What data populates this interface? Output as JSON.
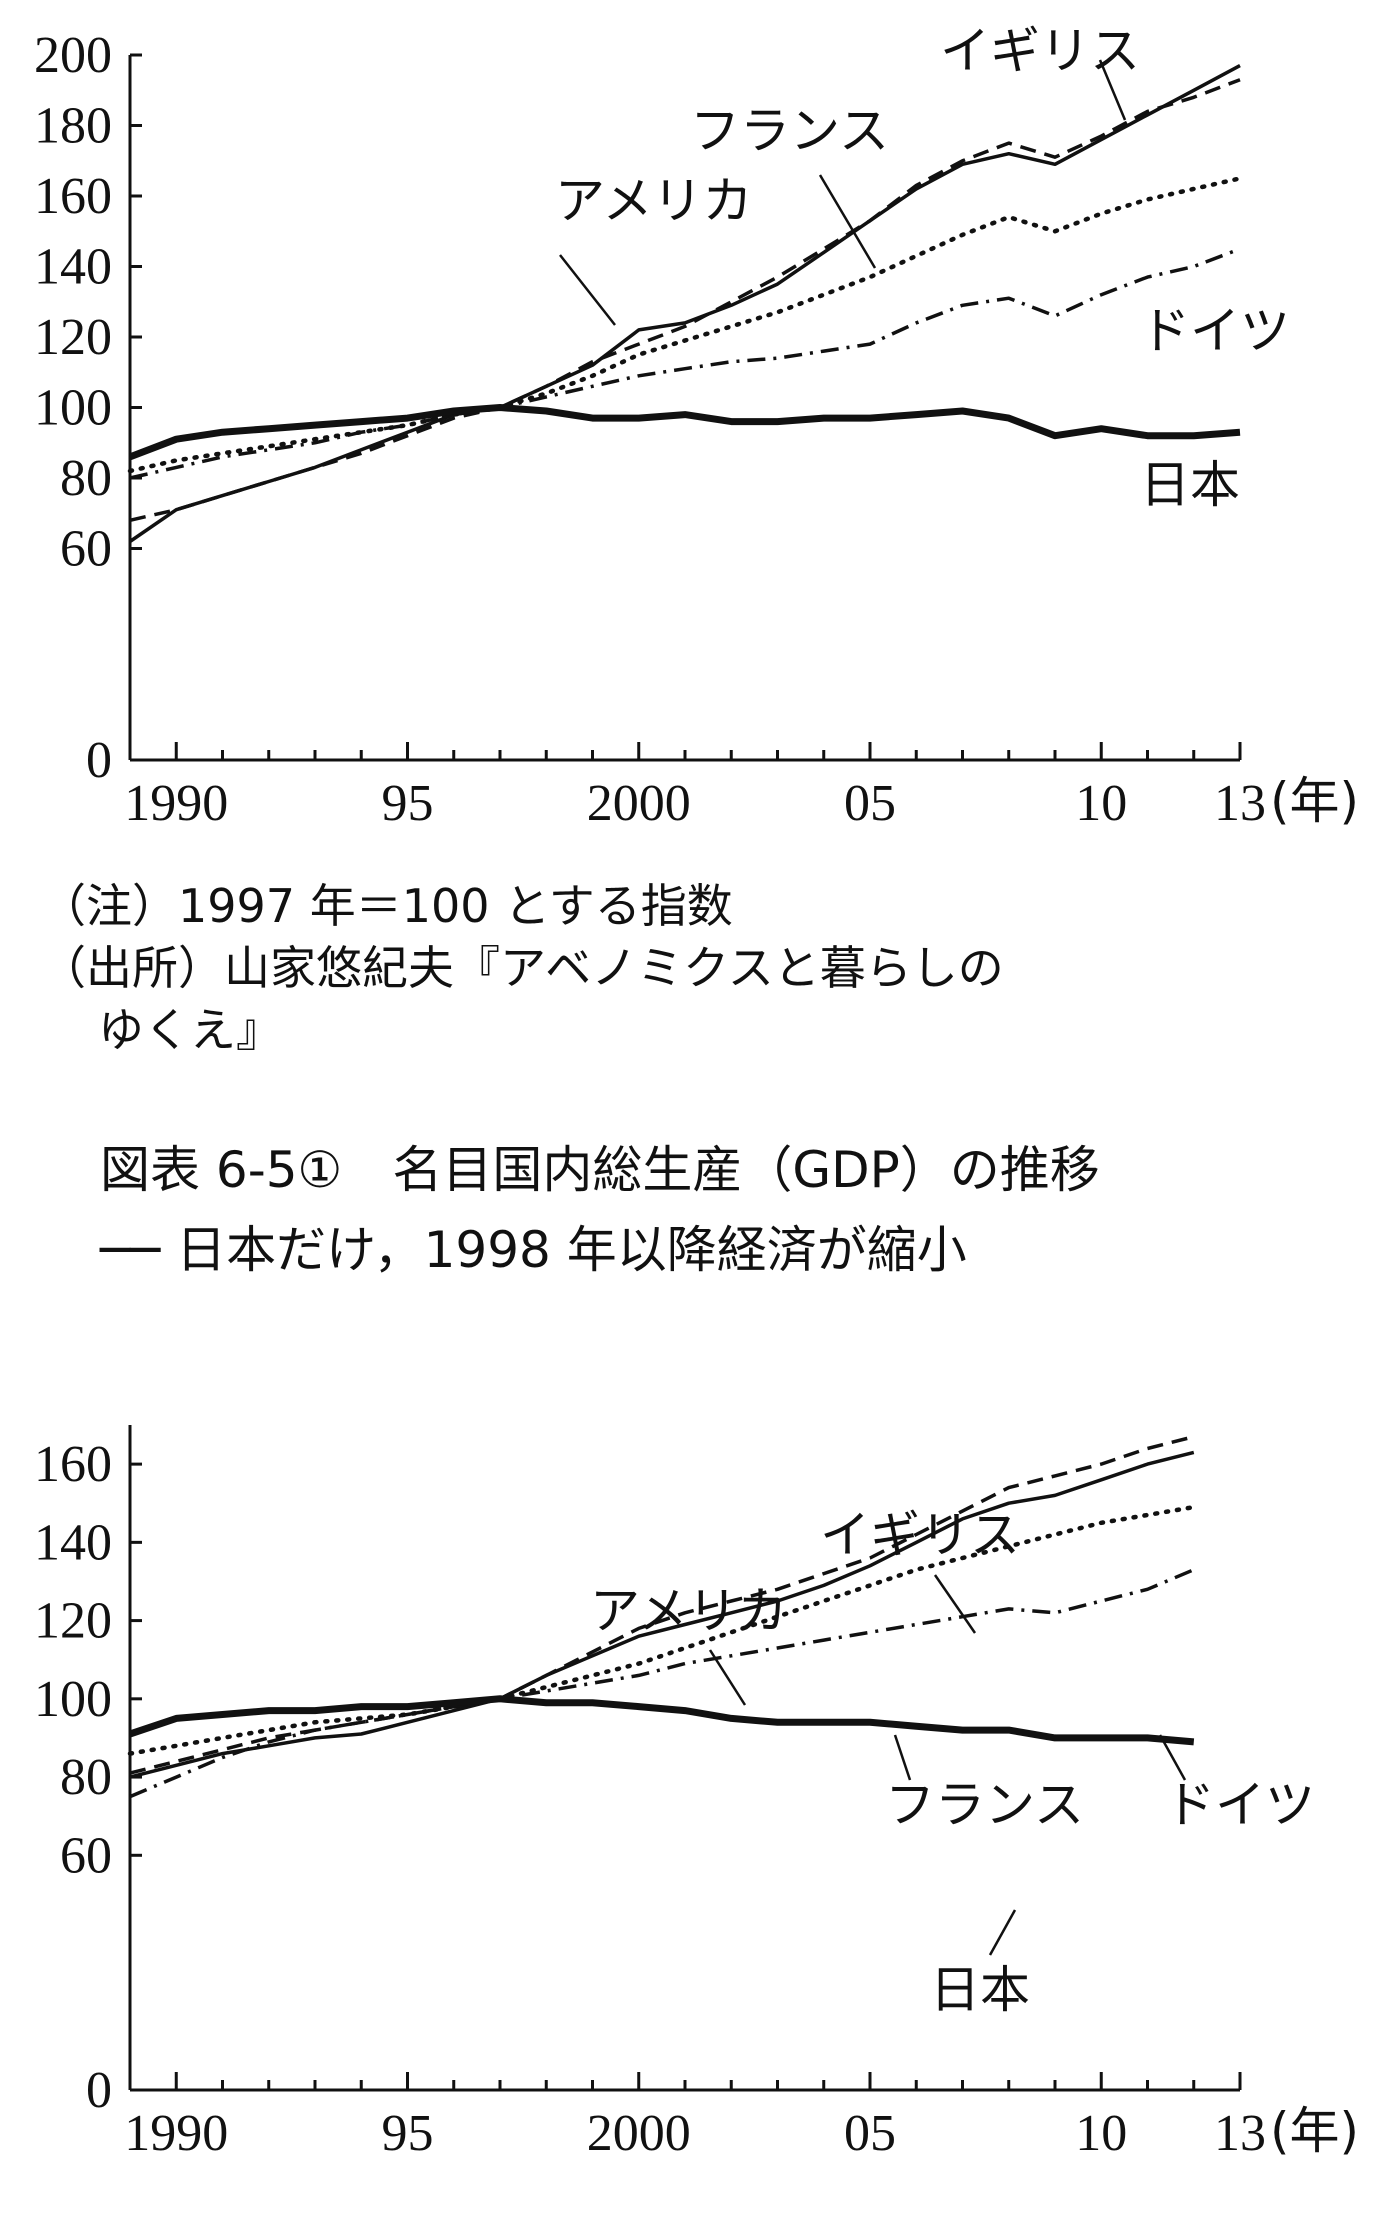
{
  "chart_data": [
    {
      "type": "line",
      "ylim": [
        0,
        200
      ],
      "y_ticks": [
        "0",
        "60",
        "80",
        "100",
        "120",
        "140",
        "160",
        "180",
        "200"
      ],
      "x_ticks": [
        {
          "year": 1990,
          "label": "1990"
        },
        {
          "year": 1995,
          "label": "95"
        },
        {
          "year": 2000,
          "label": "2000"
        },
        {
          "year": 2005,
          "label": "05"
        },
        {
          "year": 2010,
          "label": "10"
        },
        {
          "year": 2013,
          "label": "13"
        }
      ],
      "x_unit_label": "(年)",
      "x": [
        1989,
        1990,
        1991,
        1992,
        1993,
        1994,
        1995,
        1996,
        1997,
        1998,
        1999,
        2000,
        2001,
        2002,
        2003,
        2004,
        2005,
        2006,
        2007,
        2008,
        2009,
        2010,
        2011,
        2012,
        2013
      ],
      "series": [
        {
          "name": "アメリカ",
          "style": "solid",
          "values": [
            62,
            71,
            75,
            79,
            83,
            88,
            93,
            98,
            100,
            106,
            112,
            122,
            124,
            129,
            135,
            144,
            153,
            162,
            169,
            172,
            169,
            176,
            183,
            190,
            197
          ]
        },
        {
          "name": "イギリス",
          "style": "dashed",
          "values": [
            68,
            71,
            75,
            79,
            83,
            87,
            92,
            97,
            100,
            106,
            113,
            118,
            123,
            130,
            137,
            145,
            153,
            163,
            170,
            175,
            171,
            177,
            184,
            188,
            193
          ]
        },
        {
          "name": "フランス",
          "style": "dotted",
          "values": [
            82,
            85,
            87,
            89,
            91,
            93,
            95,
            98,
            100,
            104,
            109,
            115,
            119,
            123,
            127,
            132,
            137,
            143,
            149,
            154,
            150,
            155,
            159,
            162,
            165
          ]
        },
        {
          "name": "ドイツ",
          "style": "dashdot",
          "values": [
            80,
            83,
            86,
            88,
            90,
            93,
            95,
            98,
            100,
            103,
            106,
            109,
            111,
            113,
            114,
            116,
            118,
            124,
            129,
            131,
            126,
            132,
            137,
            140,
            145
          ]
        },
        {
          "name": "日本",
          "style": "thick",
          "values": [
            86,
            91,
            93,
            94,
            95,
            96,
            97,
            99,
            100,
            99,
            97,
            97,
            98,
            96,
            96,
            97,
            97,
            98,
            99,
            97,
            92,
            94,
            92,
            92,
            93
          ]
        }
      ]
    },
    {
      "type": "line",
      "ylim": [
        0,
        170
      ],
      "y_ticks": [
        "0",
        "60",
        "80",
        "100",
        "120",
        "140",
        "160"
      ],
      "x_ticks": [
        {
          "year": 1990,
          "label": "1990"
        },
        {
          "year": 1995,
          "label": "95"
        },
        {
          "year": 2000,
          "label": "2000"
        },
        {
          "year": 2005,
          "label": "05"
        },
        {
          "year": 2010,
          "label": "10"
        },
        {
          "year": 2013,
          "label": "13"
        }
      ],
      "x_unit_label": "(年)",
      "x": [
        1989,
        1990,
        1991,
        1992,
        1993,
        1994,
        1995,
        1996,
        1997,
        1998,
        1999,
        2000,
        2001,
        2002,
        2003,
        2004,
        2005,
        2006,
        2007,
        2008,
        2009,
        2010,
        2011,
        2012
      ],
      "series": [
        {
          "name": "アメリカ",
          "style": "solid",
          "values": [
            80,
            83,
            86,
            88,
            90,
            91,
            94,
            97,
            100,
            106,
            111,
            116,
            119,
            122,
            125,
            129,
            134,
            140,
            146,
            150,
            152,
            156,
            160,
            163
          ]
        },
        {
          "name": "イギリス",
          "style": "dashed",
          "values": [
            81,
            84,
            87,
            90,
            92,
            94,
            96,
            98,
            100,
            106,
            112,
            118,
            122,
            125,
            128,
            132,
            136,
            142,
            148,
            154,
            157,
            160,
            164,
            167
          ]
        },
        {
          "name": "フランス",
          "style": "dotted",
          "values": [
            86,
            88,
            90,
            92,
            94,
            95,
            96,
            98,
            100,
            103,
            106,
            109,
            113,
            117,
            121,
            125,
            129,
            133,
            136,
            139,
            142,
            145,
            147,
            149
          ]
        },
        {
          "name": "ドイツ",
          "style": "dashdot",
          "values": [
            75,
            80,
            85,
            89,
            92,
            94,
            96,
            98,
            100,
            102,
            104,
            106,
            109,
            111,
            113,
            115,
            117,
            119,
            121,
            123,
            122,
            125,
            128,
            133
          ]
        },
        {
          "name": "日本",
          "style": "thick",
          "values": [
            91,
            95,
            96,
            97,
            97,
            98,
            98,
            99,
            100,
            99,
            99,
            98,
            97,
            95,
            94,
            94,
            94,
            93,
            92,
            92,
            90,
            90,
            90,
            89
          ]
        }
      ]
    }
  ],
  "notes": {
    "line1": "（注）1997 年＝100 とする指数",
    "line2": "（出所）山家悠紀夫『アベノミクスと暮らしの",
    "line3": "ゆくえ』"
  },
  "caption": {
    "line1": "図表 6-5①　名目国内総生産（GDP）の推移",
    "line2": "── 日本だけ，1998 年以降経済が縮小"
  }
}
